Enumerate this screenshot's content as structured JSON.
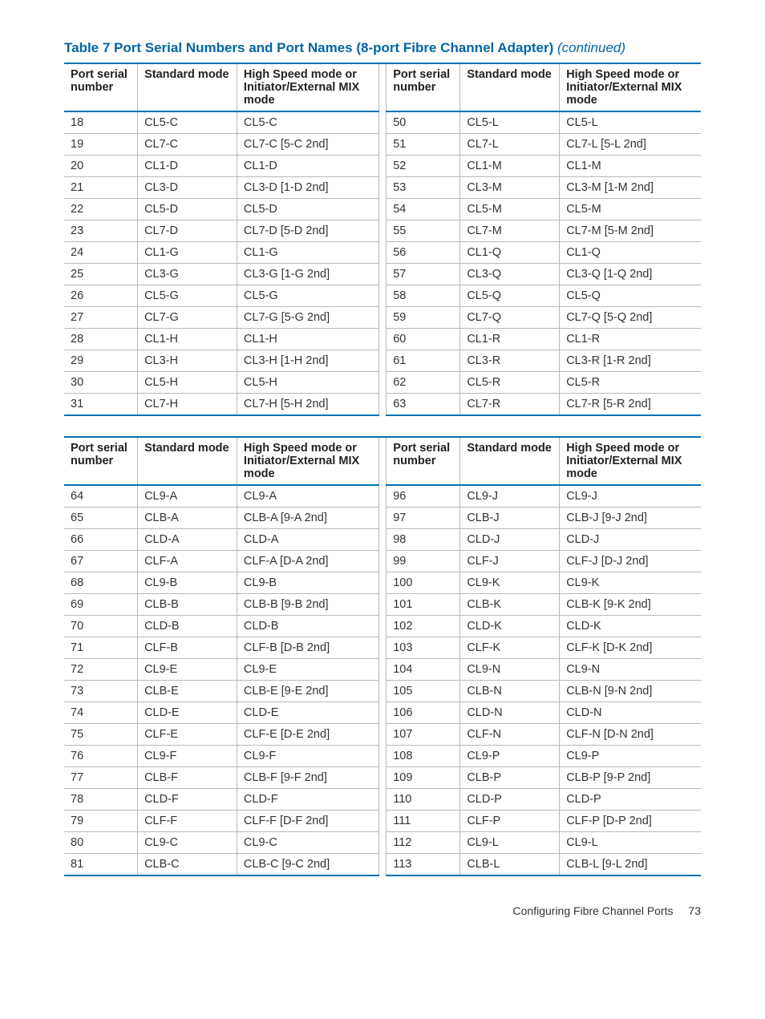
{
  "title_main": "Table 7 Port Serial Numbers and Port Names (8-port Fibre Channel Adapter)",
  "title_continued": "(continued)",
  "columns": {
    "serial": "Port serial number",
    "std": "Standard mode",
    "high": "High Speed mode or Initiator/External MIX mode"
  },
  "footer_text": "Configuring Fibre Channel Ports",
  "footer_page": "73",
  "table1_left": [
    [
      "18",
      "CL5-C",
      "CL5-C"
    ],
    [
      "19",
      "CL7-C",
      "CL7-C [5-C 2nd]"
    ],
    [
      "20",
      "CL1-D",
      "CL1-D"
    ],
    [
      "21",
      "CL3-D",
      "CL3-D [1-D 2nd]"
    ],
    [
      "22",
      "CL5-D",
      "CL5-D"
    ],
    [
      "23",
      "CL7-D",
      "CL7-D [5-D 2nd]"
    ],
    [
      "24",
      "CL1-G",
      "CL1-G"
    ],
    [
      "25",
      "CL3-G",
      "CL3-G [1-G 2nd]"
    ],
    [
      "26",
      "CL5-G",
      "CL5-G"
    ],
    [
      "27",
      "CL7-G",
      "CL7-G [5-G 2nd]"
    ],
    [
      "28",
      "CL1-H",
      "CL1-H"
    ],
    [
      "29",
      "CL3-H",
      "CL3-H [1-H 2nd]"
    ],
    [
      "30",
      "CL5-H",
      "CL5-H"
    ],
    [
      "31",
      "CL7-H",
      "CL7-H [5-H 2nd]"
    ]
  ],
  "table1_right": [
    [
      "50",
      "CL5-L",
      "CL5-L"
    ],
    [
      "51",
      "CL7-L",
      "CL7-L [5-L 2nd]"
    ],
    [
      "52",
      "CL1-M",
      "CL1-M"
    ],
    [
      "53",
      "CL3-M",
      "CL3-M [1-M 2nd]"
    ],
    [
      "54",
      "CL5-M",
      "CL5-M"
    ],
    [
      "55",
      "CL7-M",
      "CL7-M [5-M 2nd]"
    ],
    [
      "56",
      "CL1-Q",
      "CL1-Q"
    ],
    [
      "57",
      "CL3-Q",
      "CL3-Q [1-Q 2nd]"
    ],
    [
      "58",
      "CL5-Q",
      "CL5-Q"
    ],
    [
      "59",
      "CL7-Q",
      "CL7-Q [5-Q 2nd]"
    ],
    [
      "60",
      "CL1-R",
      "CL1-R"
    ],
    [
      "61",
      "CL3-R",
      "CL3-R [1-R 2nd]"
    ],
    [
      "62",
      "CL5-R",
      "CL5-R"
    ],
    [
      "63",
      "CL7-R",
      "CL7-R [5-R 2nd]"
    ]
  ],
  "table2_left": [
    [
      "64",
      "CL9-A",
      "CL9-A"
    ],
    [
      "65",
      "CLB-A",
      "CLB-A [9-A 2nd]"
    ],
    [
      "66",
      "CLD-A",
      "CLD-A"
    ],
    [
      "67",
      "CLF-A",
      "CLF-A [D-A 2nd]"
    ],
    [
      "68",
      "CL9-B",
      "CL9-B"
    ],
    [
      "69",
      "CLB-B",
      "CLB-B [9-B 2nd]"
    ],
    [
      "70",
      "CLD-B",
      "CLD-B"
    ],
    [
      "71",
      "CLF-B",
      "CLF-B [D-B 2nd]"
    ],
    [
      "72",
      "CL9-E",
      "CL9-E"
    ],
    [
      "73",
      "CLB-E",
      "CLB-E [9-E 2nd]"
    ],
    [
      "74",
      "CLD-E",
      "CLD-E"
    ],
    [
      "75",
      "CLF-E",
      "CLF-E [D-E 2nd]"
    ],
    [
      "76",
      "CL9-F",
      "CL9-F"
    ],
    [
      "77",
      "CLB-F",
      "CLB-F [9-F 2nd]"
    ],
    [
      "78",
      "CLD-F",
      "CLD-F"
    ],
    [
      "79",
      "CLF-F",
      "CLF-F [D-F 2nd]"
    ],
    [
      "80",
      "CL9-C",
      "CL9-C"
    ],
    [
      "81",
      "CLB-C",
      "CLB-C [9-C 2nd]"
    ]
  ],
  "table2_right": [
    [
      "96",
      "CL9-J",
      "CL9-J"
    ],
    [
      "97",
      "CLB-J",
      "CLB-J [9-J 2nd]"
    ],
    [
      "98",
      "CLD-J",
      "CLD-J"
    ],
    [
      "99",
      "CLF-J",
      "CLF-J [D-J 2nd]"
    ],
    [
      "100",
      "CL9-K",
      "CL9-K"
    ],
    [
      "101",
      "CLB-K",
      "CLB-K [9-K 2nd]"
    ],
    [
      "102",
      "CLD-K",
      "CLD-K"
    ],
    [
      "103",
      "CLF-K",
      "CLF-K [D-K 2nd]"
    ],
    [
      "104",
      "CL9-N",
      "CL9-N"
    ],
    [
      "105",
      "CLB-N",
      "CLB-N [9-N 2nd]"
    ],
    [
      "106",
      "CLD-N",
      "CLD-N"
    ],
    [
      "107",
      "CLF-N",
      "CLF-N [D-N 2nd]"
    ],
    [
      "108",
      "CL9-P",
      "CL9-P"
    ],
    [
      "109",
      "CLB-P",
      "CLB-P [9-P 2nd]"
    ],
    [
      "110",
      "CLD-P",
      "CLD-P"
    ],
    [
      "111",
      "CLF-P",
      "CLF-P [D-P 2nd]"
    ],
    [
      "112",
      "CL9-L",
      "CL9-L"
    ],
    [
      "113",
      "CLB-L",
      "CLB-L [9-L 2nd]"
    ]
  ]
}
